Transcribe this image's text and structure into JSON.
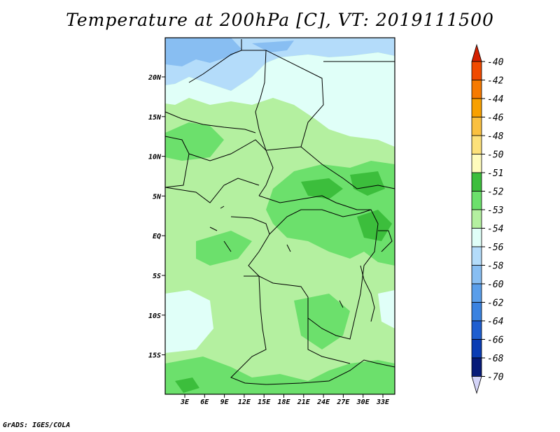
{
  "title": "Temperature at 200hPa [C], VT: 2019111500",
  "credit": "GrADS: IGES/COLA",
  "map": {
    "lat_ticks": [
      "20N",
      "15N",
      "10N",
      "5N",
      "EQ",
      "5S",
      "10S",
      "15S"
    ],
    "lon_ticks": [
      "3E",
      "6E",
      "9E",
      "12E",
      "15E",
      "18E",
      "21E",
      "24E",
      "27E",
      "30E",
      "33E"
    ]
  },
  "colorbar": {
    "levels": [
      {
        "label": "-40",
        "color": "#d42000"
      },
      {
        "label": "-42",
        "color": "#f04a00"
      },
      {
        "label": "-44",
        "color": "#f67a00"
      },
      {
        "label": "-46",
        "color": "#f8a000"
      },
      {
        "label": "-48",
        "color": "#fac040"
      },
      {
        "label": "-50",
        "color": "#fde17a"
      },
      {
        "label": "-51",
        "color": "#fffcbc"
      },
      {
        "label": "-52",
        "color": "#3cbe3c"
      },
      {
        "label": "-53",
        "color": "#6ce06c"
      },
      {
        "label": "-54",
        "color": "#b4f0a0"
      },
      {
        "label": "-56",
        "color": "#e0fff8"
      },
      {
        "label": "-58",
        "color": "#b4dcfa"
      },
      {
        "label": "-60",
        "color": "#88bef2"
      },
      {
        "label": "-62",
        "color": "#5a9eea"
      },
      {
        "label": "-64",
        "color": "#3a82e0"
      },
      {
        "label": "-66",
        "color": "#1e5ed0"
      },
      {
        "label": "-68",
        "color": "#0a3cb4"
      },
      {
        "label": "-70",
        "color": "#061a78"
      }
    ],
    "top_arrow_color": "#d42000",
    "bottom_arrow_color": "#d4d4f8"
  }
}
